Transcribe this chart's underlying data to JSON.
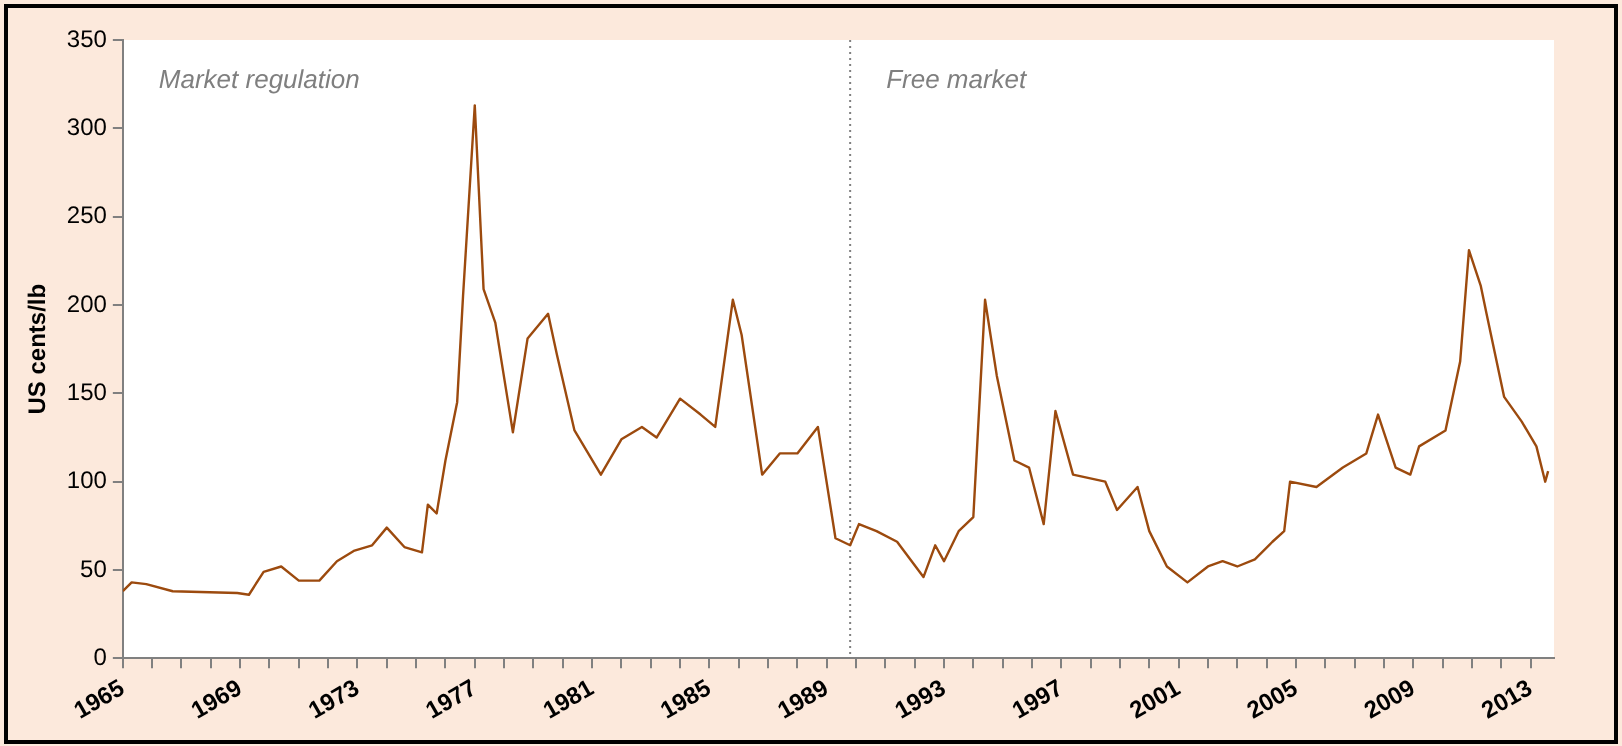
{
  "chart_data": {
    "type": "line",
    "ylabel": "US cents/lb",
    "annotations": [
      "Market regulation",
      "Free market"
    ],
    "xlim": [
      1965,
      2013.8
    ],
    "xticks": [
      1965,
      {
        "value": 1966,
        "label": null
      },
      {
        "value": 1967,
        "label": null
      },
      {
        "value": 1968,
        "label": null
      },
      1969,
      {
        "value": 1970,
        "label": null
      },
      {
        "value": 1971,
        "label": null
      },
      {
        "value": 1972,
        "label": null
      },
      1973,
      {
        "value": 1974,
        "label": null
      },
      {
        "value": 1975,
        "label": null
      },
      {
        "value": 1976,
        "label": null
      },
      1977,
      {
        "value": 1978,
        "label": null
      },
      {
        "value": 1979,
        "label": null
      },
      {
        "value": 1980,
        "label": null
      },
      1981,
      {
        "value": 1982,
        "label": null
      },
      {
        "value": 1983,
        "label": null
      },
      {
        "value": 1984,
        "label": null
      },
      1985,
      {
        "value": 1986,
        "label": null
      },
      {
        "value": 1987,
        "label": null
      },
      {
        "value": 1988,
        "label": null
      },
      1989,
      {
        "value": 1990,
        "label": null
      },
      {
        "value": 1991,
        "label": null
      },
      {
        "value": 1992,
        "label": null
      },
      1993,
      {
        "value": 1994,
        "label": null
      },
      {
        "value": 1995,
        "label": null
      },
      {
        "value": 1996,
        "label": null
      },
      1997,
      {
        "value": 1998,
        "label": null
      },
      {
        "value": 1999,
        "label": null
      },
      {
        "value": 2000,
        "label": null
      },
      2001,
      {
        "value": 2002,
        "label": null
      },
      {
        "value": 2003,
        "label": null
      },
      {
        "value": 2004,
        "label": null
      },
      2005,
      {
        "value": 2006,
        "label": null
      },
      {
        "value": 2007,
        "label": null
      },
      {
        "value": 2008,
        "label": null
      },
      2009,
      {
        "value": 2010,
        "label": null
      },
      {
        "value": 2011,
        "label": null
      },
      {
        "value": 2012,
        "label": null
      },
      2013
    ],
    "ylim": [
      0,
      350
    ],
    "yticks": [
      0,
      50,
      100,
      150,
      200,
      250,
      300,
      350
    ],
    "grid": false,
    "legend": false,
    "marker": "none",
    "line_style": "solid",
    "ref_lines": [
      {
        "axis": "x",
        "value": 1989.8,
        "color": "#808080",
        "line_style": "dotted"
      }
    ],
    "series": [
      {
        "color": "#9c4a0e",
        "x": [
          1965.0,
          1965.3,
          1965.8,
          1966.7,
          1968.9,
          1969.3,
          1969.8,
          1970.4,
          1971.0,
          1971.7,
          1972.3,
          1972.9,
          1973.5,
          1974.0,
          1974.6,
          1975.2,
          1975.4,
          1975.7,
          1976.0,
          1976.4,
          1976.6,
          1977.0,
          1977.3,
          1977.7,
          1978.3,
          1978.8,
          1979.5,
          1979.8,
          1980.4,
          1981.3,
          1982.0,
          1982.7,
          1983.2,
          1984.0,
          1984.7,
          1985.2,
          1985.8,
          1986.1,
          1986.8,
          1987.4,
          1988.0,
          1988.7,
          1989.3,
          1989.8,
          1990.1,
          1990.7,
          1991.4,
          1992.3,
          1992.7,
          1993.0,
          1993.5,
          1994.0,
          1994.4,
          1994.8,
          1995.4,
          1995.9,
          1996.4,
          1996.8,
          1997.4,
          1998.5,
          1998.9,
          1999.6,
          2000.0,
          2000.6,
          2001.3,
          2002.0,
          2002.5,
          2003.0,
          2003.6,
          2004.2,
          2004.6,
          2004.8,
          2005.7,
          2006.6,
          2007.4,
          2007.8,
          2008.4,
          2008.9,
          2009.2,
          2010.1,
          2010.6,
          2010.9,
          2011.3,
          2011.5,
          2012.1,
          2012.7,
          2013.2,
          2013.5,
          2013.6
        ],
        "values": [
          38,
          43,
          42,
          38,
          37,
          36,
          49,
          52,
          44,
          44,
          55,
          61,
          64,
          74,
          63,
          60,
          87,
          82,
          112,
          145,
          205,
          313,
          209,
          190,
          128,
          181,
          195,
          172,
          129,
          104,
          124,
          131,
          125,
          147,
          138,
          131,
          203,
          183,
          104,
          116,
          116,
          131,
          68,
          64,
          76,
          72,
          66,
          46,
          64,
          55,
          72,
          80,
          203,
          160,
          112,
          108,
          76,
          140,
          104,
          100,
          84,
          97,
          72,
          52,
          43,
          52,
          55,
          52,
          56,
          66,
          72,
          100,
          97,
          108,
          116,
          138,
          108,
          104,
          120,
          129,
          168,
          231,
          211,
          195,
          148,
          134,
          120,
          100,
          106
        ]
      }
    ]
  }
}
